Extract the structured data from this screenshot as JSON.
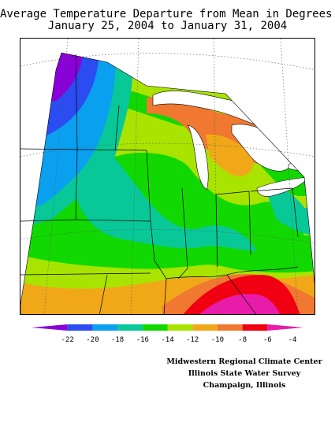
{
  "title": {
    "line1": "Average Temperature Departure from Mean in Degrees F",
    "line2": "January 25, 2004 to January 31, 2004"
  },
  "legend": {
    "bins": [
      {
        "color": "#8a00d8"
      },
      {
        "color": "#2a4cf0"
      },
      {
        "color": "#0aa0f0"
      },
      {
        "color": "#08c898"
      },
      {
        "color": "#10d800"
      },
      {
        "color": "#a8e400"
      },
      {
        "color": "#f0a818"
      },
      {
        "color": "#f07830"
      },
      {
        "color": "#f00010"
      },
      {
        "color": "#e81ca8"
      }
    ],
    "labels": [
      "-22",
      "-20",
      "-18",
      "-16",
      "-14",
      "-12",
      "-10",
      "-8",
      "-6",
      "-4"
    ]
  },
  "credits": {
    "line1": "Midwestern Regional Climate Center",
    "line2": "Illinois State Water Survey",
    "line3": "Champaign, Illinois"
  }
}
